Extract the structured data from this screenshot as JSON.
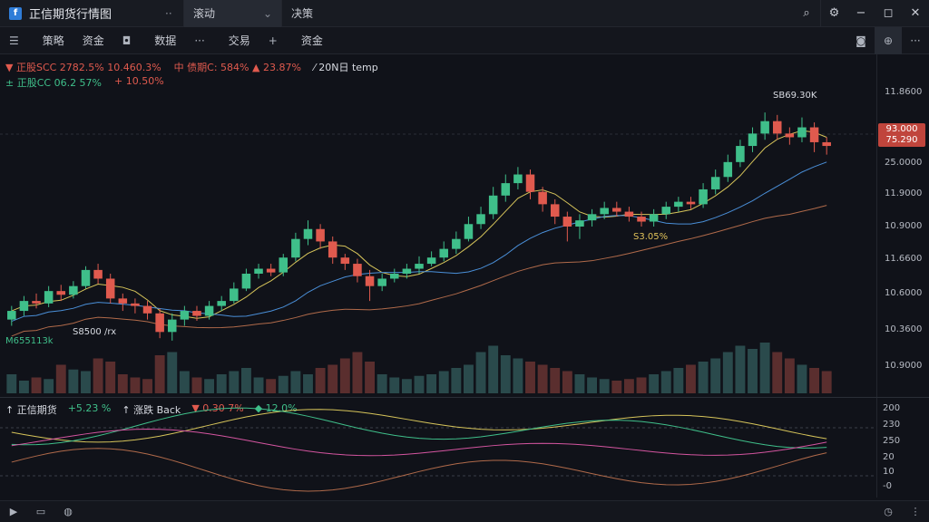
{
  "app": {
    "title": "正信期货行情图",
    "logo_letter": "f"
  },
  "tabs": [
    {
      "label": "滚动",
      "active": true
    },
    {
      "label": "决策",
      "active": false
    }
  ],
  "toolbar": {
    "items": [
      {
        "icon": "☰",
        "label": ""
      },
      {
        "icon": "",
        "label": "策略"
      },
      {
        "icon": "",
        "label": "资金"
      },
      {
        "icon": "◘",
        "label": ""
      },
      {
        "icon": "",
        "label": "数据"
      },
      {
        "icon": "···",
        "label": ""
      },
      {
        "icon": "",
        "label": "交易"
      },
      {
        "icon": "+",
        "label": ""
      },
      {
        "icon": "",
        "label": "资金"
      }
    ]
  },
  "legend": {
    "line1": [
      {
        "text": "▼ 正股SCC 2782.5% 10.460.3%",
        "color": "red"
      },
      {
        "text": "中 债期C: 584% ▲ 23.87%",
        "color": "red"
      },
      {
        "text": "⁄ 20N日 temp",
        "color": "white"
      }
    ],
    "line2": [
      {
        "text": "± 正股CC 06.2 57%",
        "color": "green"
      },
      {
        "text": "+ 10.50%",
        "color": "red"
      }
    ]
  },
  "annotations": {
    "high_label": "SB69.30K",
    "mid_label": "S3.05%",
    "low_label": "S8500 /rx",
    "low_left": "M655113k"
  },
  "price_axis": [
    "11.8600",
    "25.0000",
    "11.9000",
    "10.9000",
    "11.6600",
    "10.6000",
    "10.3600",
    "10.9000"
  ],
  "price_tag": [
    "93.000",
    "75.290"
  ],
  "indicator": {
    "legend": [
      {
        "text": "↑ 正信期货",
        "color": "white"
      },
      {
        "text": "+5.23 %",
        "color": "green"
      },
      {
        "text": "↑ 涨跌 Back",
        "color": "white"
      },
      {
        "text": "▼ 0.30 7%",
        "color": "red"
      },
      {
        "text": "◆ 12.0%",
        "color": "green"
      }
    ],
    "axis": [
      "200",
      "230",
      "250",
      "20",
      "10",
      "-0"
    ]
  },
  "colors": {
    "up": "#3fbf8a",
    "down": "#e05a4e",
    "ma_yellow": "#d6c45a",
    "ma_blue": "#4a8fd8",
    "ma_brown": "#b06a4a",
    "pink": "#d455a0"
  },
  "chart_data": {
    "type": "candlestick",
    "candles": [
      [
        10.55,
        10.62,
        10.66,
        10.5
      ],
      [
        10.62,
        10.7,
        10.74,
        10.58
      ],
      [
        10.7,
        10.68,
        10.76,
        10.64
      ],
      [
        10.68,
        10.78,
        10.82,
        10.65
      ],
      [
        10.78,
        10.75,
        10.83,
        10.7
      ],
      [
        10.75,
        10.82,
        10.86,
        10.72
      ],
      [
        10.82,
        10.95,
        10.98,
        10.8
      ],
      [
        10.95,
        10.88,
        11.0,
        10.84
      ],
      [
        10.88,
        10.72,
        10.92,
        10.68
      ],
      [
        10.72,
        10.68,
        10.76,
        10.62
      ],
      [
        10.68,
        10.66,
        10.72,
        10.6
      ],
      [
        10.66,
        10.6,
        10.7,
        10.55
      ],
      [
        10.6,
        10.45,
        10.64,
        10.4
      ],
      [
        10.45,
        10.55,
        10.6,
        10.38
      ],
      [
        10.55,
        10.62,
        10.66,
        10.5
      ],
      [
        10.62,
        10.58,
        10.66,
        10.54
      ],
      [
        10.58,
        10.66,
        10.7,
        10.55
      ],
      [
        10.66,
        10.7,
        10.74,
        10.62
      ],
      [
        10.7,
        10.8,
        10.85,
        10.68
      ],
      [
        10.8,
        10.92,
        10.96,
        10.78
      ],
      [
        10.92,
        10.96,
        11.0,
        10.88
      ],
      [
        10.96,
        10.93,
        11.0,
        10.9
      ],
      [
        10.93,
        11.05,
        11.08,
        10.9
      ],
      [
        11.05,
        11.2,
        11.25,
        11.02
      ],
      [
        11.2,
        11.28,
        11.35,
        11.15
      ],
      [
        11.28,
        11.18,
        11.32,
        11.12
      ],
      [
        11.18,
        11.05,
        11.22,
        11.0
      ],
      [
        11.05,
        11.0,
        11.08,
        10.95
      ],
      [
        11.0,
        10.9,
        11.04,
        10.85
      ],
      [
        10.9,
        10.82,
        10.95,
        10.7
      ],
      [
        10.82,
        10.88,
        10.92,
        10.78
      ],
      [
        10.88,
        10.92,
        10.96,
        10.85
      ],
      [
        10.92,
        10.96,
        11.0,
        10.88
      ],
      [
        10.96,
        11.0,
        11.06,
        10.92
      ],
      [
        11.0,
        11.05,
        11.1,
        10.98
      ],
      [
        11.05,
        11.12,
        11.18,
        11.02
      ],
      [
        11.12,
        11.2,
        11.26,
        11.08
      ],
      [
        11.2,
        11.32,
        11.38,
        11.18
      ],
      [
        11.32,
        11.4,
        11.46,
        11.28
      ],
      [
        11.4,
        11.55,
        11.62,
        11.36
      ],
      [
        11.55,
        11.65,
        11.72,
        11.5
      ],
      [
        11.65,
        11.72,
        11.78,
        11.6
      ],
      [
        11.72,
        11.58,
        11.76,
        11.52
      ],
      [
        11.58,
        11.48,
        11.62,
        11.42
      ],
      [
        11.48,
        11.38,
        11.52,
        11.32
      ],
      [
        11.38,
        11.3,
        11.42,
        11.18
      ],
      [
        11.3,
        11.35,
        11.4,
        11.2
      ],
      [
        11.35,
        11.4,
        11.44,
        11.3
      ],
      [
        11.4,
        11.45,
        11.5,
        11.36
      ],
      [
        11.45,
        11.42,
        11.5,
        11.38
      ],
      [
        11.42,
        11.38,
        11.46,
        11.34
      ],
      [
        11.38,
        11.34,
        11.42,
        11.3
      ],
      [
        11.34,
        11.4,
        11.44,
        11.3
      ],
      [
        11.4,
        11.46,
        11.5,
        11.36
      ],
      [
        11.46,
        11.5,
        11.54,
        11.42
      ],
      [
        11.5,
        11.48,
        11.54,
        11.44
      ],
      [
        11.48,
        11.6,
        11.65,
        11.45
      ],
      [
        11.6,
        11.7,
        11.76,
        11.56
      ],
      [
        11.7,
        11.82,
        11.88,
        11.66
      ],
      [
        11.82,
        11.95,
        12.0,
        11.78
      ],
      [
        11.95,
        12.05,
        12.1,
        11.9
      ],
      [
        12.05,
        12.15,
        12.22,
        12.0
      ],
      [
        12.15,
        12.05,
        12.2,
        12.0
      ],
      [
        12.05,
        12.02,
        12.1,
        11.96
      ],
      [
        12.02,
        12.1,
        12.18,
        11.98
      ],
      [
        12.1,
        11.98,
        12.14,
        11.9
      ],
      [
        11.98,
        11.95,
        12.02,
        11.88
      ]
    ],
    "volume": [
      12,
      8,
      10,
      9,
      18,
      15,
      14,
      22,
      20,
      12,
      10,
      9,
      24,
      26,
      14,
      10,
      9,
      12,
      14,
      16,
      10,
      9,
      11,
      14,
      12,
      16,
      18,
      22,
      26,
      20,
      12,
      10,
      9,
      11,
      12,
      14,
      16,
      18,
      26,
      30,
      24,
      22,
      20,
      18,
      16,
      14,
      12,
      10,
      9,
      8,
      9,
      10,
      12,
      14,
      16,
      18,
      20,
      22,
      26,
      30,
      28,
      32,
      26,
      22,
      18,
      16,
      14
    ]
  }
}
